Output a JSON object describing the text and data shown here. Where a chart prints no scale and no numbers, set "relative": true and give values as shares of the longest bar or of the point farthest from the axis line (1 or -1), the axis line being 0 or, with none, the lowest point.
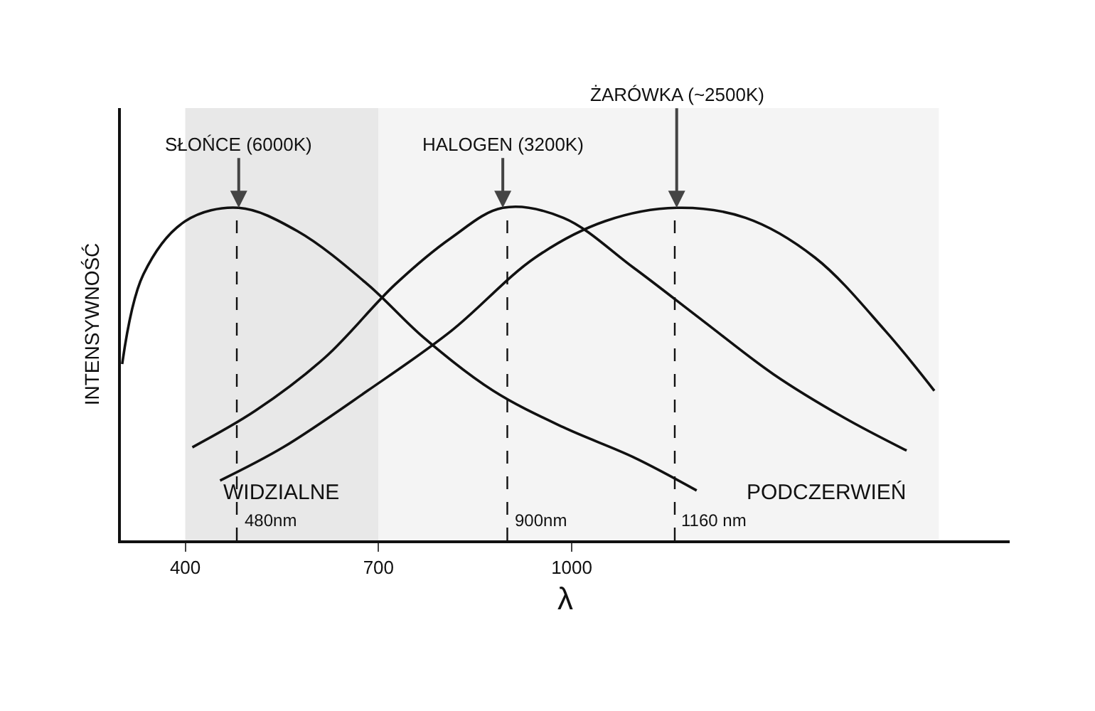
{
  "chart_data": {
    "type": "line",
    "relative": true,
    "xlabel": "λ",
    "ylabel": "INTENSYWNOŚĆ",
    "xlim": [
      300,
      1680
    ],
    "xticks": [
      400,
      700,
      1000
    ],
    "grid": false,
    "legend": false,
    "marker": "none",
    "line_style": "solid",
    "series": [
      {
        "name": "SŁOŃCE (6000K)",
        "color": "#111111",
        "x": [
          302,
          335,
          400,
          483,
          574,
          683,
          770,
          878,
          987,
          1096,
          1194
        ],
        "values": [
          0.53,
          0.8,
          0.96,
          1,
          0.93,
          0.77,
          0.61,
          0.45,
          0.34,
          0.25,
          0.15
        ]
      },
      {
        "name": "HALOGEN (3200K)",
        "color": "#111111",
        "x": [
          411,
          509,
          617,
          726,
          813,
          893,
          987,
          1096,
          1204,
          1313,
          1422,
          1520
        ],
        "values": [
          0.28,
          0.39,
          0.55,
          0.77,
          0.91,
          1,
          0.97,
          0.82,
          0.66,
          0.5,
          0.37,
          0.27
        ]
      },
      {
        "name": "ŻARÓWKA (~2500K)",
        "color": "#111111",
        "x": [
          454,
          552,
          683,
          813,
          943,
          1052,
          1163,
          1270,
          1378,
          1487,
          1563
        ],
        "values": [
          0.18,
          0.28,
          0.45,
          0.63,
          0.85,
          0.96,
          1,
          0.97,
          0.85,
          0.63,
          0.45
        ]
      }
    ],
    "ref_lines": [
      {
        "axis": "x",
        "value": 480,
        "label": "480nm",
        "line_style": "dashed",
        "color": "#111111"
      },
      {
        "axis": "x",
        "value": 900,
        "label": "900nm",
        "line_style": "dashed",
        "color": "#111111"
      },
      {
        "axis": "x",
        "value": 1160,
        "label": "1160 nm",
        "line_style": "dashed",
        "color": "#111111"
      }
    ],
    "bands": [
      {
        "axis": "x",
        "from": 400,
        "to": 700,
        "label": "WIDZIALNE",
        "color": "#e8e8e8"
      },
      {
        "axis": "x",
        "from": 700,
        "to": 1570,
        "label": "PODCZERWIEŃ",
        "color": "#f4f4f4"
      }
    ]
  }
}
